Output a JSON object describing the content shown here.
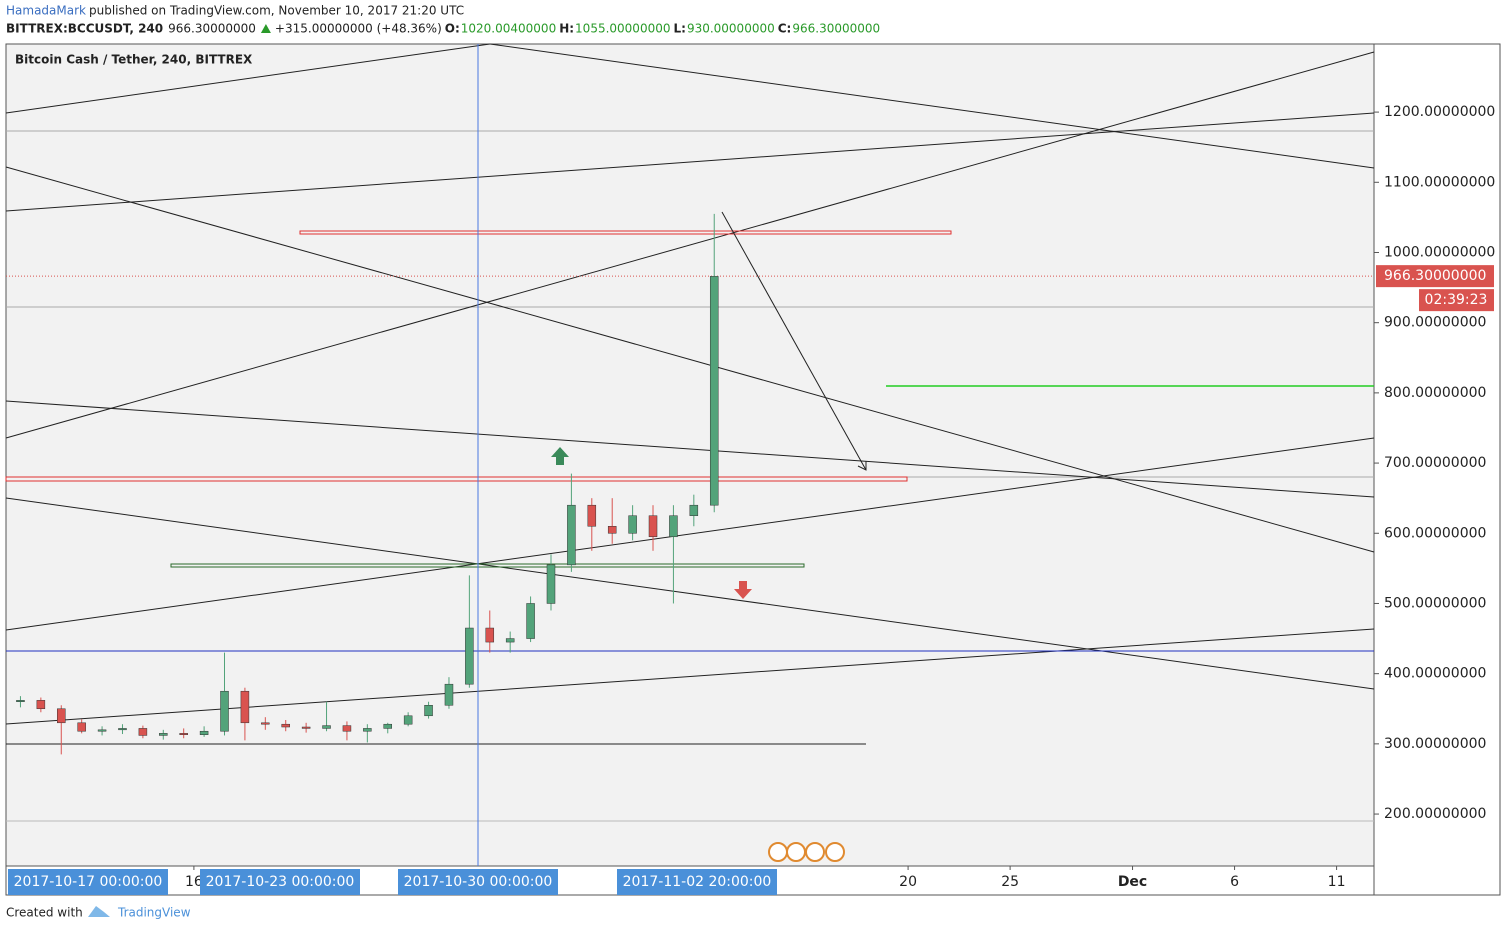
{
  "header": {
    "author": "HamadaMark",
    "published": "published on TradingView.com, November 10, 2017 21:20 UTC"
  },
  "chart_data": {
    "type": "candlestick",
    "symbol": "BITTREX:BCCUSDT, 240",
    "last": "966.30000000",
    "change": "+315.00000000 (+48.36%)",
    "ohlc": [
      {
        "name": "O:",
        "value": "1020.00400000"
      },
      {
        "name": "H:",
        "value": "1055.00000000"
      },
      {
        "name": "L:",
        "value": "930.00000000"
      },
      {
        "name": "C:",
        "value": "966.30000000"
      }
    ],
    "title": "Bitcoin Cash / Tether, 240, BITTREX",
    "x": [
      "2017-10-07",
      "2017-10-08",
      "2017-10-09",
      "2017-10-10",
      "2017-10-11",
      "2017-10-12",
      "2017-10-13",
      "2017-10-14",
      "2017-10-15",
      "2017-10-16",
      "2017-10-17",
      "2017-10-18",
      "2017-10-19",
      "2017-10-20",
      "2017-10-21",
      "2017-10-22",
      "2017-10-23",
      "2017-10-24",
      "2017-10-25",
      "2017-10-26",
      "2017-10-27",
      "2017-10-28",
      "2017-10-29",
      "2017-10-30",
      "2017-10-31",
      "2017-11-01",
      "2017-11-02",
      "2017-11-03",
      "2017-11-04",
      "2017-11-05",
      "2017-11-06",
      "2017-11-07",
      "2017-11-08",
      "2017-11-09",
      "2017-11-10"
    ],
    "open": [
      360,
      362,
      350,
      330,
      318,
      320,
      322,
      312,
      315,
      313,
      318,
      375,
      330,
      328,
      324,
      322,
      326,
      318,
      322,
      328,
      340,
      355,
      385,
      465,
      445,
      450,
      500,
      555,
      640,
      610,
      600,
      625,
      595,
      625,
      640
    ],
    "high": [
      368,
      366,
      355,
      335,
      325,
      328,
      326,
      320,
      322,
      325,
      430,
      380,
      338,
      334,
      330,
      360,
      332,
      328,
      330,
      345,
      360,
      395,
      540,
      490,
      460,
      510,
      570,
      685,
      650,
      650,
      640,
      640,
      640,
      655,
      1055
    ],
    "low": [
      352,
      345,
      285,
      315,
      312,
      314,
      308,
      306,
      308,
      310,
      312,
      305,
      320,
      318,
      316,
      318,
      305,
      302,
      315,
      325,
      336,
      350,
      380,
      430,
      430,
      445,
      490,
      545,
      575,
      585,
      590,
      575,
      500,
      610,
      630
    ],
    "close": [
      362,
      350,
      330,
      318,
      320,
      322,
      312,
      315,
      313,
      318,
      375,
      330,
      328,
      324,
      322,
      326,
      318,
      322,
      328,
      340,
      355,
      385,
      465,
      445,
      450,
      500,
      555,
      640,
      610,
      600,
      625,
      595,
      625,
      640,
      966
    ],
    "up_color": "#53a37a",
    "down_color": "#d9534f",
    "xlim": [
      "2017-10-06T19:00",
      "2017-12-12T20:00"
    ],
    "xticks": [
      {
        "value": "2017-10-16",
        "label": "16"
      },
      {
        "value": "2017-11-20",
        "label": "20"
      },
      {
        "value": "2017-11-25",
        "label": "25"
      },
      {
        "value": "2017-12-01",
        "label": "Dec"
      },
      {
        "value": "2017-12-06",
        "label": "6"
      },
      {
        "value": "2017-12-11",
        "label": "11"
      }
    ],
    "date_labels": [
      "2017-10-17 00:00:00",
      "2017-10-23 00:00:00",
      "2017-10-30 00:00:00",
      "2017-11-02 20:00:00"
    ],
    "ylim": [
      126,
      1297
    ],
    "yticks": [
      {
        "value": 200,
        "label": "200.00000000"
      },
      {
        "value": 300,
        "label": "300.00000000"
      },
      {
        "value": 400,
        "label": "400.00000000"
      },
      {
        "value": 500,
        "label": "500.00000000"
      },
      {
        "value": 600,
        "label": "600.00000000"
      },
      {
        "value": 700,
        "label": "700.00000000"
      },
      {
        "value": 800,
        "label": "800.00000000"
      },
      {
        "value": 900,
        "label": "900.00000000"
      },
      {
        "value": 1000,
        "label": "1000.00000000"
      },
      {
        "value": 1100,
        "label": "1100.00000000"
      },
      {
        "value": 1200,
        "label": "1200.00000000"
      }
    ],
    "last_price": {
      "value": 966.3,
      "label": "966.30000000"
    },
    "countdown": "02:39:23"
  },
  "footer": {
    "created": "Created with",
    "brand": "TradingView"
  }
}
